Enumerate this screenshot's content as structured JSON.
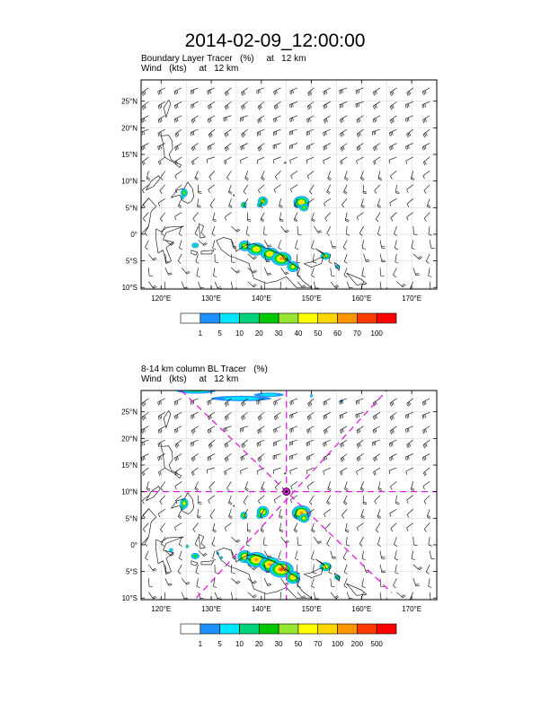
{
  "title": "2014-02-09_12:00:00",
  "panels": [
    {
      "title_line1": "Boundary Layer Tracer   (%)     at   12 km",
      "title_line2": "Wind   (kts)     at   12 km",
      "lat_ticks": [
        "25°N",
        "20°N",
        "15°N",
        "10°N",
        "5°N",
        "0°",
        "5°S",
        "10°S"
      ],
      "lon_ticks": [
        "120°E",
        "130°E",
        "140°E",
        "150°E",
        "160°E",
        "170°E"
      ],
      "colorbar_labels": [
        "1",
        "5",
        "10",
        "20",
        "30",
        "40",
        "50",
        "60",
        "70",
        "100"
      ]
    },
    {
      "title_line1": "8-14 km column BL Tracer   (%)",
      "title_line2": "Wind   (kts)     at   12 km",
      "lat_ticks": [
        "25°N",
        "20°N",
        "15°N",
        "10°N",
        "5°N",
        "0°",
        "5°S",
        "10°S"
      ],
      "lon_ticks": [
        "120°E",
        "130°E",
        "140°E",
        "150°E",
        "160°E",
        "170°E"
      ],
      "colorbar_labels": [
        "1",
        "5",
        "10",
        "20",
        "30",
        "50",
        "70",
        "100",
        "200",
        "500"
      ]
    }
  ],
  "colors": {
    "colorbar": [
      "#ffffff",
      "#1e90ff",
      "#00e5ff",
      "#00d27a",
      "#00c800",
      "#96e632",
      "#ffff00",
      "#ffd700",
      "#ff9600",
      "#ff3c00",
      "#ff0000"
    ],
    "cross_lines": "#e020e0"
  }
}
